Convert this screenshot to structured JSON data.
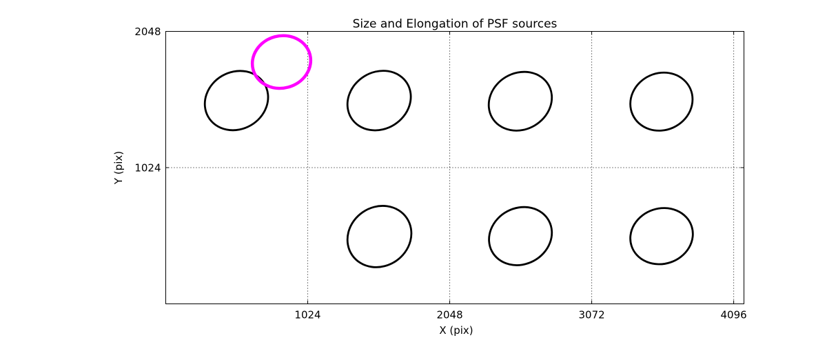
{
  "figure": {
    "background": "#ffffff",
    "frame_color": "#000000"
  },
  "chart_data": {
    "type": "scatter",
    "title": "Size and Elongation of PSF sources",
    "xlabel": "X (pix)",
    "ylabel": "Y (pix)",
    "xlim": [
      0,
      4170
    ],
    "ylim": [
      0,
      2048
    ],
    "x_ticks": [
      1024,
      2048,
      3072,
      4096
    ],
    "y_ticks": [
      1024,
      2048
    ],
    "grid": {
      "style": "dotted",
      "color": "#000000",
      "x_lines": [
        1024,
        2048,
        3072,
        4096
      ],
      "y_lines": [
        1024
      ]
    },
    "legend": "none",
    "series": [
      {
        "name": "psf-ellipses",
        "glyph": "ellipse",
        "color": "#000000",
        "line_width": 2.8,
        "points": [
          {
            "cx": 510,
            "cy": 1528,
            "a": 235,
            "b": 215,
            "angle": 30
          },
          {
            "cx": 1539,
            "cy": 1528,
            "a": 237,
            "b": 214,
            "angle": 32
          },
          {
            "cx": 2557,
            "cy": 1523,
            "a": 235,
            "b": 212,
            "angle": 30
          },
          {
            "cx": 3575,
            "cy": 1520,
            "a": 228,
            "b": 214,
            "angle": 24
          },
          {
            "cx": 1541,
            "cy": 506,
            "a": 238,
            "b": 222,
            "angle": 34
          },
          {
            "cx": 2558,
            "cy": 509,
            "a": 233,
            "b": 211,
            "angle": 28
          },
          {
            "cx": 3576,
            "cy": 509,
            "a": 228,
            "b": 208,
            "angle": 18
          }
        ]
      },
      {
        "name": "outlier-ellipse",
        "glyph": "ellipse",
        "color": "#ff00ff",
        "line_width": 4.5,
        "points": [
          {
            "cx": 835,
            "cy": 1818,
            "a": 212,
            "b": 196,
            "angle": 15
          }
        ]
      }
    ]
  }
}
